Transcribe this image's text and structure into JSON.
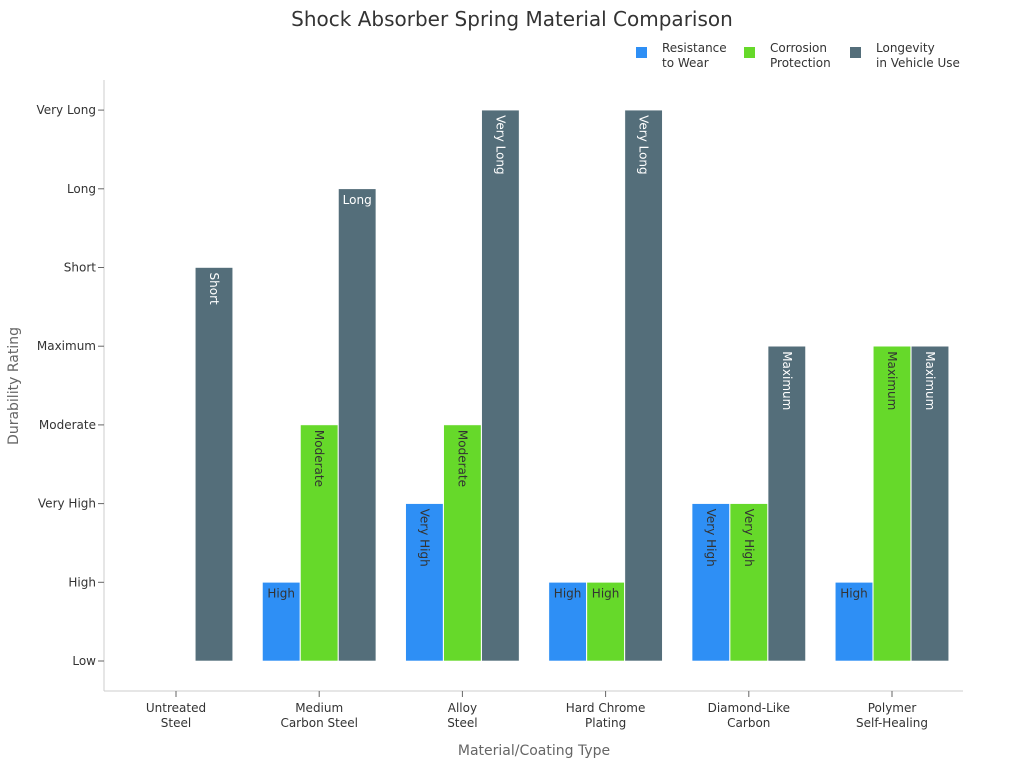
{
  "chart_data": {
    "type": "bar",
    "title": "Shock Absorber Spring Material Comparison",
    "xlabel": "Material/Coating Type",
    "ylabel": "Durability Rating",
    "y_levels": [
      "Low",
      "High",
      "Very High",
      "Moderate",
      "Maximum",
      "Short",
      "Long",
      "Very Long"
    ],
    "categories": [
      [
        "Untreated",
        "Steel"
      ],
      [
        "Medium",
        "Carbon Steel"
      ],
      [
        "Alloy",
        "Steel"
      ],
      [
        "Hard Chrome",
        "Plating"
      ],
      [
        "Diamond-Like",
        "Carbon"
      ],
      [
        "Polymer",
        "Self-Healing"
      ]
    ],
    "series": [
      {
        "name": [
          "Resistance",
          "to Wear"
        ],
        "color": "#2E8FF5",
        "label_color": "#333333",
        "values": [
          "Low",
          "High",
          "Very High",
          "High",
          "Very High",
          "High"
        ]
      },
      {
        "name": [
          "Corrosion",
          "Protection"
        ],
        "color": "#66D92A",
        "label_color": "#333333",
        "values": [
          "Low",
          "Moderate",
          "Moderate",
          "High",
          "Very High",
          "Maximum"
        ]
      },
      {
        "name": [
          "Longevity",
          "in Vehicle Use"
        ],
        "color": "#546E7A",
        "label_color": "#ffffff",
        "values": [
          "Short",
          "Long",
          "Very Long",
          "Very Long",
          "Maximum",
          "Maximum"
        ]
      }
    ],
    "legend_position": "top-right",
    "grid": false
  }
}
